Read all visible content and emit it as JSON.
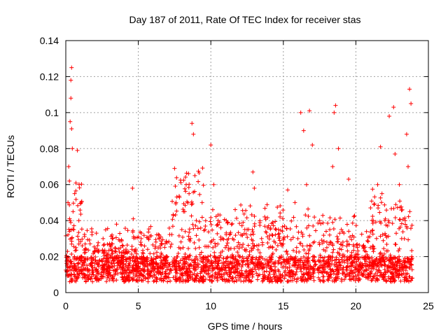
{
  "chart_data": {
    "type": "scatter",
    "title": "Day 187 of 2011, Rate Of TEC Index for receiver stas",
    "xlabel": "GPS time / hours",
    "ylabel": "ROTI / TECUs",
    "xlim": [
      0,
      25
    ],
    "ylim": [
      0,
      0.14
    ],
    "x_ticks": [
      "0",
      "5",
      "10",
      "15",
      "20",
      "25"
    ],
    "y_ticks": [
      "0",
      "0.02",
      "0.04",
      "0.06",
      "0.08",
      "0.1",
      "0.12",
      "0.14"
    ],
    "x_tick_values": [
      0,
      5,
      10,
      15,
      20,
      25
    ],
    "y_tick_values": [
      0,
      0.02,
      0.04,
      0.06,
      0.08,
      0.1,
      0.12,
      0.14
    ],
    "grid": true,
    "legend": "none",
    "marker": "plus",
    "color": "#ff0000",
    "series": [
      {
        "x": [
          0.1,
          0.15,
          0.2,
          0.25,
          0.3,
          0.3,
          0.35,
          0.35,
          0.4,
          0.4,
          0.4,
          0.45,
          0.5,
          0.55,
          0.6,
          0.65,
          0.7,
          0.8,
          0.9,
          1.0,
          1.05,
          1.1,
          1.2,
          1.3,
          1.5,
          1.8,
          2.2,
          2.5,
          3.0,
          3.2,
          3.5,
          4.0,
          4.6,
          4.65,
          5.0,
          5.5,
          6.0,
          6.5,
          7.0,
          7.5,
          7.6,
          7.8,
          8.0,
          8.2,
          8.3,
          8.5,
          8.6,
          8.7,
          8.8,
          8.9,
          9.0,
          9.2,
          9.4,
          9.6,
          9.8,
          10.0,
          10.2,
          10.5,
          10.8,
          11.0,
          11.5,
          12.0,
          12.5,
          12.9,
          13.0,
          13.5,
          14.0,
          14.5,
          15.0,
          15.3,
          15.5,
          15.8,
          16.0,
          16.2,
          16.4,
          16.6,
          16.8,
          17.0,
          17.5,
          18.0,
          18.2,
          18.4,
          18.5,
          18.6,
          18.8,
          19.0,
          19.5,
          20.0,
          20.5,
          21.0,
          21.2,
          21.5,
          21.7,
          21.8,
          22.0,
          22.3,
          22.6,
          22.7,
          23.0,
          23.2,
          23.4,
          23.5,
          23.6,
          23.7,
          23.8
        ],
        "y": [
          0.012,
          0.05,
          0.07,
          0.062,
          0.095,
          0.04,
          0.108,
          0.118,
          0.125,
          0.091,
          0.03,
          0.08,
          0.045,
          0.035,
          0.02,
          0.015,
          0.025,
          0.079,
          0.04,
          0.018,
          0.012,
          0.02,
          0.015,
          0.01,
          0.012,
          0.015,
          0.012,
          0.015,
          0.014,
          0.03,
          0.038,
          0.016,
          0.058,
          0.041,
          0.014,
          0.015,
          0.016,
          0.014,
          0.02,
          0.069,
          0.05,
          0.025,
          0.035,
          0.045,
          0.06,
          0.055,
          0.03,
          0.094,
          0.088,
          0.065,
          0.04,
          0.025,
          0.05,
          0.035,
          0.02,
          0.082,
          0.06,
          0.04,
          0.03,
          0.025,
          0.03,
          0.02,
          0.035,
          0.067,
          0.058,
          0.03,
          0.025,
          0.035,
          0.03,
          0.057,
          0.02,
          0.05,
          0.03,
          0.1,
          0.09,
          0.06,
          0.101,
          0.082,
          0.04,
          0.025,
          0.035,
          0.07,
          0.1,
          0.104,
          0.08,
          0.035,
          0.063,
          0.02,
          0.015,
          0.025,
          0.04,
          0.06,
          0.081,
          0.055,
          0.04,
          0.098,
          0.103,
          0.077,
          0.06,
          0.046,
          0.04,
          0.088,
          0.07,
          0.113,
          0.105
        ]
      }
    ]
  }
}
